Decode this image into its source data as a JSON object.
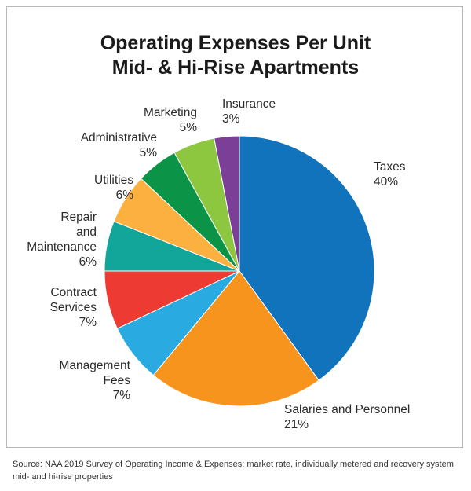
{
  "chart_data": {
    "type": "pie",
    "title_line1": "Operating Expenses Per Unit",
    "title_line2": "Mid- & Hi-Rise Apartments",
    "slices": [
      {
        "label": [
          "Taxes",
          "40%"
        ],
        "value": 40,
        "color": "#1273bd"
      },
      {
        "label": [
          "Salaries and Personnel",
          "21%"
        ],
        "value": 21,
        "color": "#f7941d"
      },
      {
        "label": [
          "Management",
          "Fees",
          "7%"
        ],
        "value": 7,
        "color": "#29abe2"
      },
      {
        "label": [
          "Contract",
          "Services",
          "7%"
        ],
        "value": 7,
        "color": "#ed3b34"
      },
      {
        "label": [
          "Repair",
          "and",
          "Maintenance",
          "6%"
        ],
        "value": 6,
        "color": "#12a59a"
      },
      {
        "label": [
          "Utilities",
          "6%"
        ],
        "value": 6,
        "color": "#fbb040"
      },
      {
        "label": [
          "Administrative",
          "5%"
        ],
        "value": 5,
        "color": "#0b9447"
      },
      {
        "label": [
          "Marketing",
          "5%"
        ],
        "value": 5,
        "color": "#8dc63f"
      },
      {
        "label": [
          "Insurance",
          "3%"
        ],
        "value": 3,
        "color": "#7b3f98"
      }
    ]
  },
  "source": "Source:  NAA 2019 Survey of Operating Income & Expenses; market rate, individually metered and recovery system mid- and hi-rise properties"
}
